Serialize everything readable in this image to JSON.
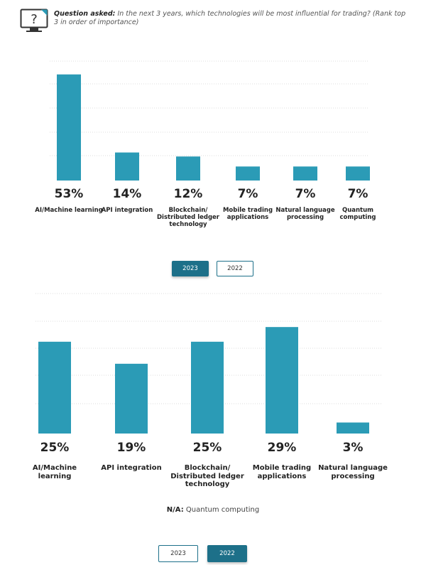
{
  "header": {
    "question_label": "Question asked:",
    "question_text": "In the next 3 years, which technologies will be most influential for trading? (Rank top 3 in order of importance)",
    "icon": "monitor-question-icon"
  },
  "colors": {
    "bar": "#2b9bb6",
    "active": "#1d7089",
    "grid": "#dddddd"
  },
  "chart_data": [
    {
      "type": "bar",
      "year": "2023",
      "categories": [
        "AI/Machine learning",
        "API integration",
        "Blockchain/ Distributed ledger technology",
        "Mobile trading applications",
        "Natural language processing",
        "Quantum computing"
      ],
      "values": [
        53,
        14,
        12,
        7,
        7,
        7
      ],
      "value_labels": [
        "53%",
        "14%",
        "12%",
        "7%",
        "7%",
        "7%"
      ],
      "ylim": [
        0,
        60
      ]
    },
    {
      "type": "bar",
      "year": "2022",
      "categories": [
        "AI/Machine learning",
        "API integration",
        "Blockchain/ Distributed ledger technology",
        "Mobile trading applications",
        "Natural language processing"
      ],
      "values": [
        25,
        19,
        25,
        29,
        3
      ],
      "value_labels": [
        "25%",
        "19%",
        "25%",
        "29%",
        "3%"
      ],
      "ylim": [
        0,
        30
      ]
    }
  ],
  "toggles_top": {
    "left": "2023",
    "right": "2022",
    "active": "2023"
  },
  "toggles_bottom": {
    "left": "2023",
    "right": "2022",
    "active": "2022"
  },
  "note": {
    "label": "N/A:",
    "text": "Quantum computing"
  }
}
